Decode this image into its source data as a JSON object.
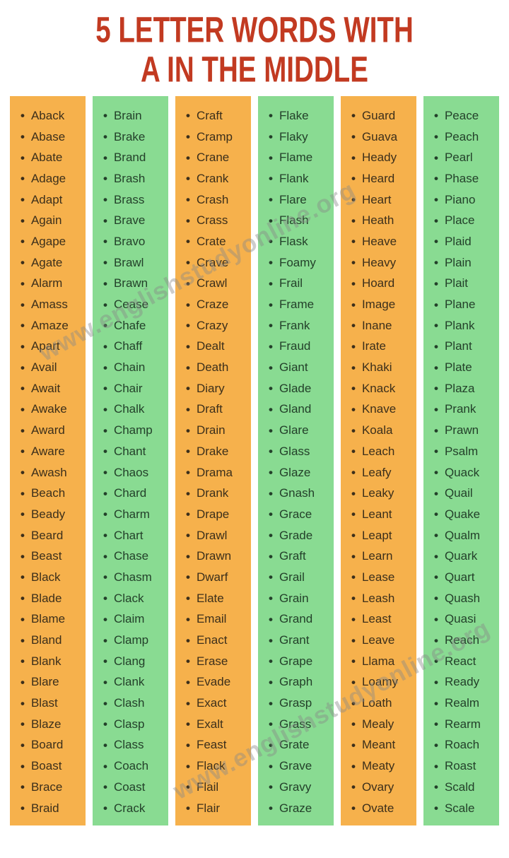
{
  "title": {
    "line1": "5 LETTER WORDS WITH",
    "line2": "A IN THE MIDDLE"
  },
  "colors": {
    "title": "#c23a21",
    "orange": "#f6b14c",
    "green": "#89db92"
  },
  "bullet": "•",
  "watermark": {
    "text": "www.englishstudyonline.org"
  },
  "columns": [
    {
      "bg": "orange",
      "words": [
        "Aback",
        "Abase",
        "Abate",
        "Adage",
        "Adapt",
        "Again",
        "Agape",
        "Agate",
        "Alarm",
        "Amass",
        "Amaze",
        "Apart",
        "Avail",
        "Await",
        "Awake",
        "Award",
        "Aware",
        "Awash",
        "Beach",
        "Beady",
        "Beard",
        "Beast",
        "Black",
        "Blade",
        "Blame",
        "Bland",
        "Blank",
        "Blare",
        "Blast",
        "Blaze",
        "Board",
        "Boast",
        "Brace",
        "Braid"
      ]
    },
    {
      "bg": "green",
      "words": [
        "Brain",
        "Brake",
        "Brand",
        "Brash",
        "Brass",
        "Brave",
        "Bravo",
        "Brawl",
        "Brawn",
        "Cease",
        "Chafe",
        "Chaff",
        "Chain",
        "Chair",
        "Chalk",
        "Champ",
        "Chant",
        "Chaos",
        "Chard",
        "Charm",
        "Chart",
        "Chase",
        "Chasm",
        "Clack",
        "Claim",
        "Clamp",
        "Clang",
        "Clank",
        "Clash",
        "Clasp",
        "Class",
        "Coach",
        "Coast",
        "Crack"
      ]
    },
    {
      "bg": "orange",
      "words": [
        "Craft",
        "Cramp",
        "Crane",
        "Crank",
        "Crash",
        "Crass",
        "Crate",
        "Crave",
        "Crawl",
        "Craze",
        "Crazy",
        "Dealt",
        "Death",
        "Diary",
        "Draft",
        "Drain",
        "Drake",
        "Drama",
        "Drank",
        "Drape",
        "Drawl",
        "Drawn",
        "Dwarf",
        "Elate",
        "Email",
        "Enact",
        "Erase",
        "Evade",
        "Exact",
        "Exalt",
        "Feast",
        "Flack",
        "Flail",
        "Flair"
      ]
    },
    {
      "bg": "green",
      "words": [
        "Flake",
        "Flaky",
        "Flame",
        "Flank",
        "Flare",
        "Flash",
        "Flask",
        "Foamy",
        "Frail",
        "Frame",
        "Frank",
        "Fraud",
        "Giant",
        "Glade",
        "Gland",
        "Glare",
        "Glass",
        "Glaze",
        "Gnash",
        "Grace",
        "Grade",
        "Graft",
        "Grail",
        "Grain",
        "Grand",
        "Grant",
        "Grape",
        "Graph",
        "Grasp",
        "Grass",
        "Grate",
        "Grave",
        "Gravy",
        "Graze"
      ]
    },
    {
      "bg": "orange",
      "words": [
        "Guard",
        "Guava",
        "Heady",
        "Heard",
        "Heart",
        "Heath",
        "Heave",
        "Heavy",
        "Hoard",
        "Image",
        "Inane",
        "Irate",
        "Khaki",
        "Knack",
        "Knave",
        "Koala",
        "Leach",
        "Leafy",
        "Leaky",
        "Leant",
        "Leapt",
        "Learn",
        "Lease",
        "Leash",
        "Least",
        "Leave",
        "Llama",
        "Loamy",
        "Loath",
        "Mealy",
        "Meant",
        "Meaty",
        "Ovary",
        "Ovate"
      ]
    },
    {
      "bg": "green",
      "words": [
        "Peace",
        "Peach",
        "Pearl",
        "Phase",
        "Piano",
        "Place",
        "Plaid",
        "Plain",
        "Plait",
        "Plane",
        "Plank",
        "Plant",
        "Plate",
        "Plaza",
        "Prank",
        "Prawn",
        "Psalm",
        "Quack",
        "Quail",
        "Quake",
        "Qualm",
        "Quark",
        "Quart",
        "Quash",
        "Quasi",
        "Reach",
        "React",
        "Ready",
        "Realm",
        "Rearm",
        "Roach",
        "Roast",
        "Scald",
        "Scale"
      ]
    }
  ]
}
